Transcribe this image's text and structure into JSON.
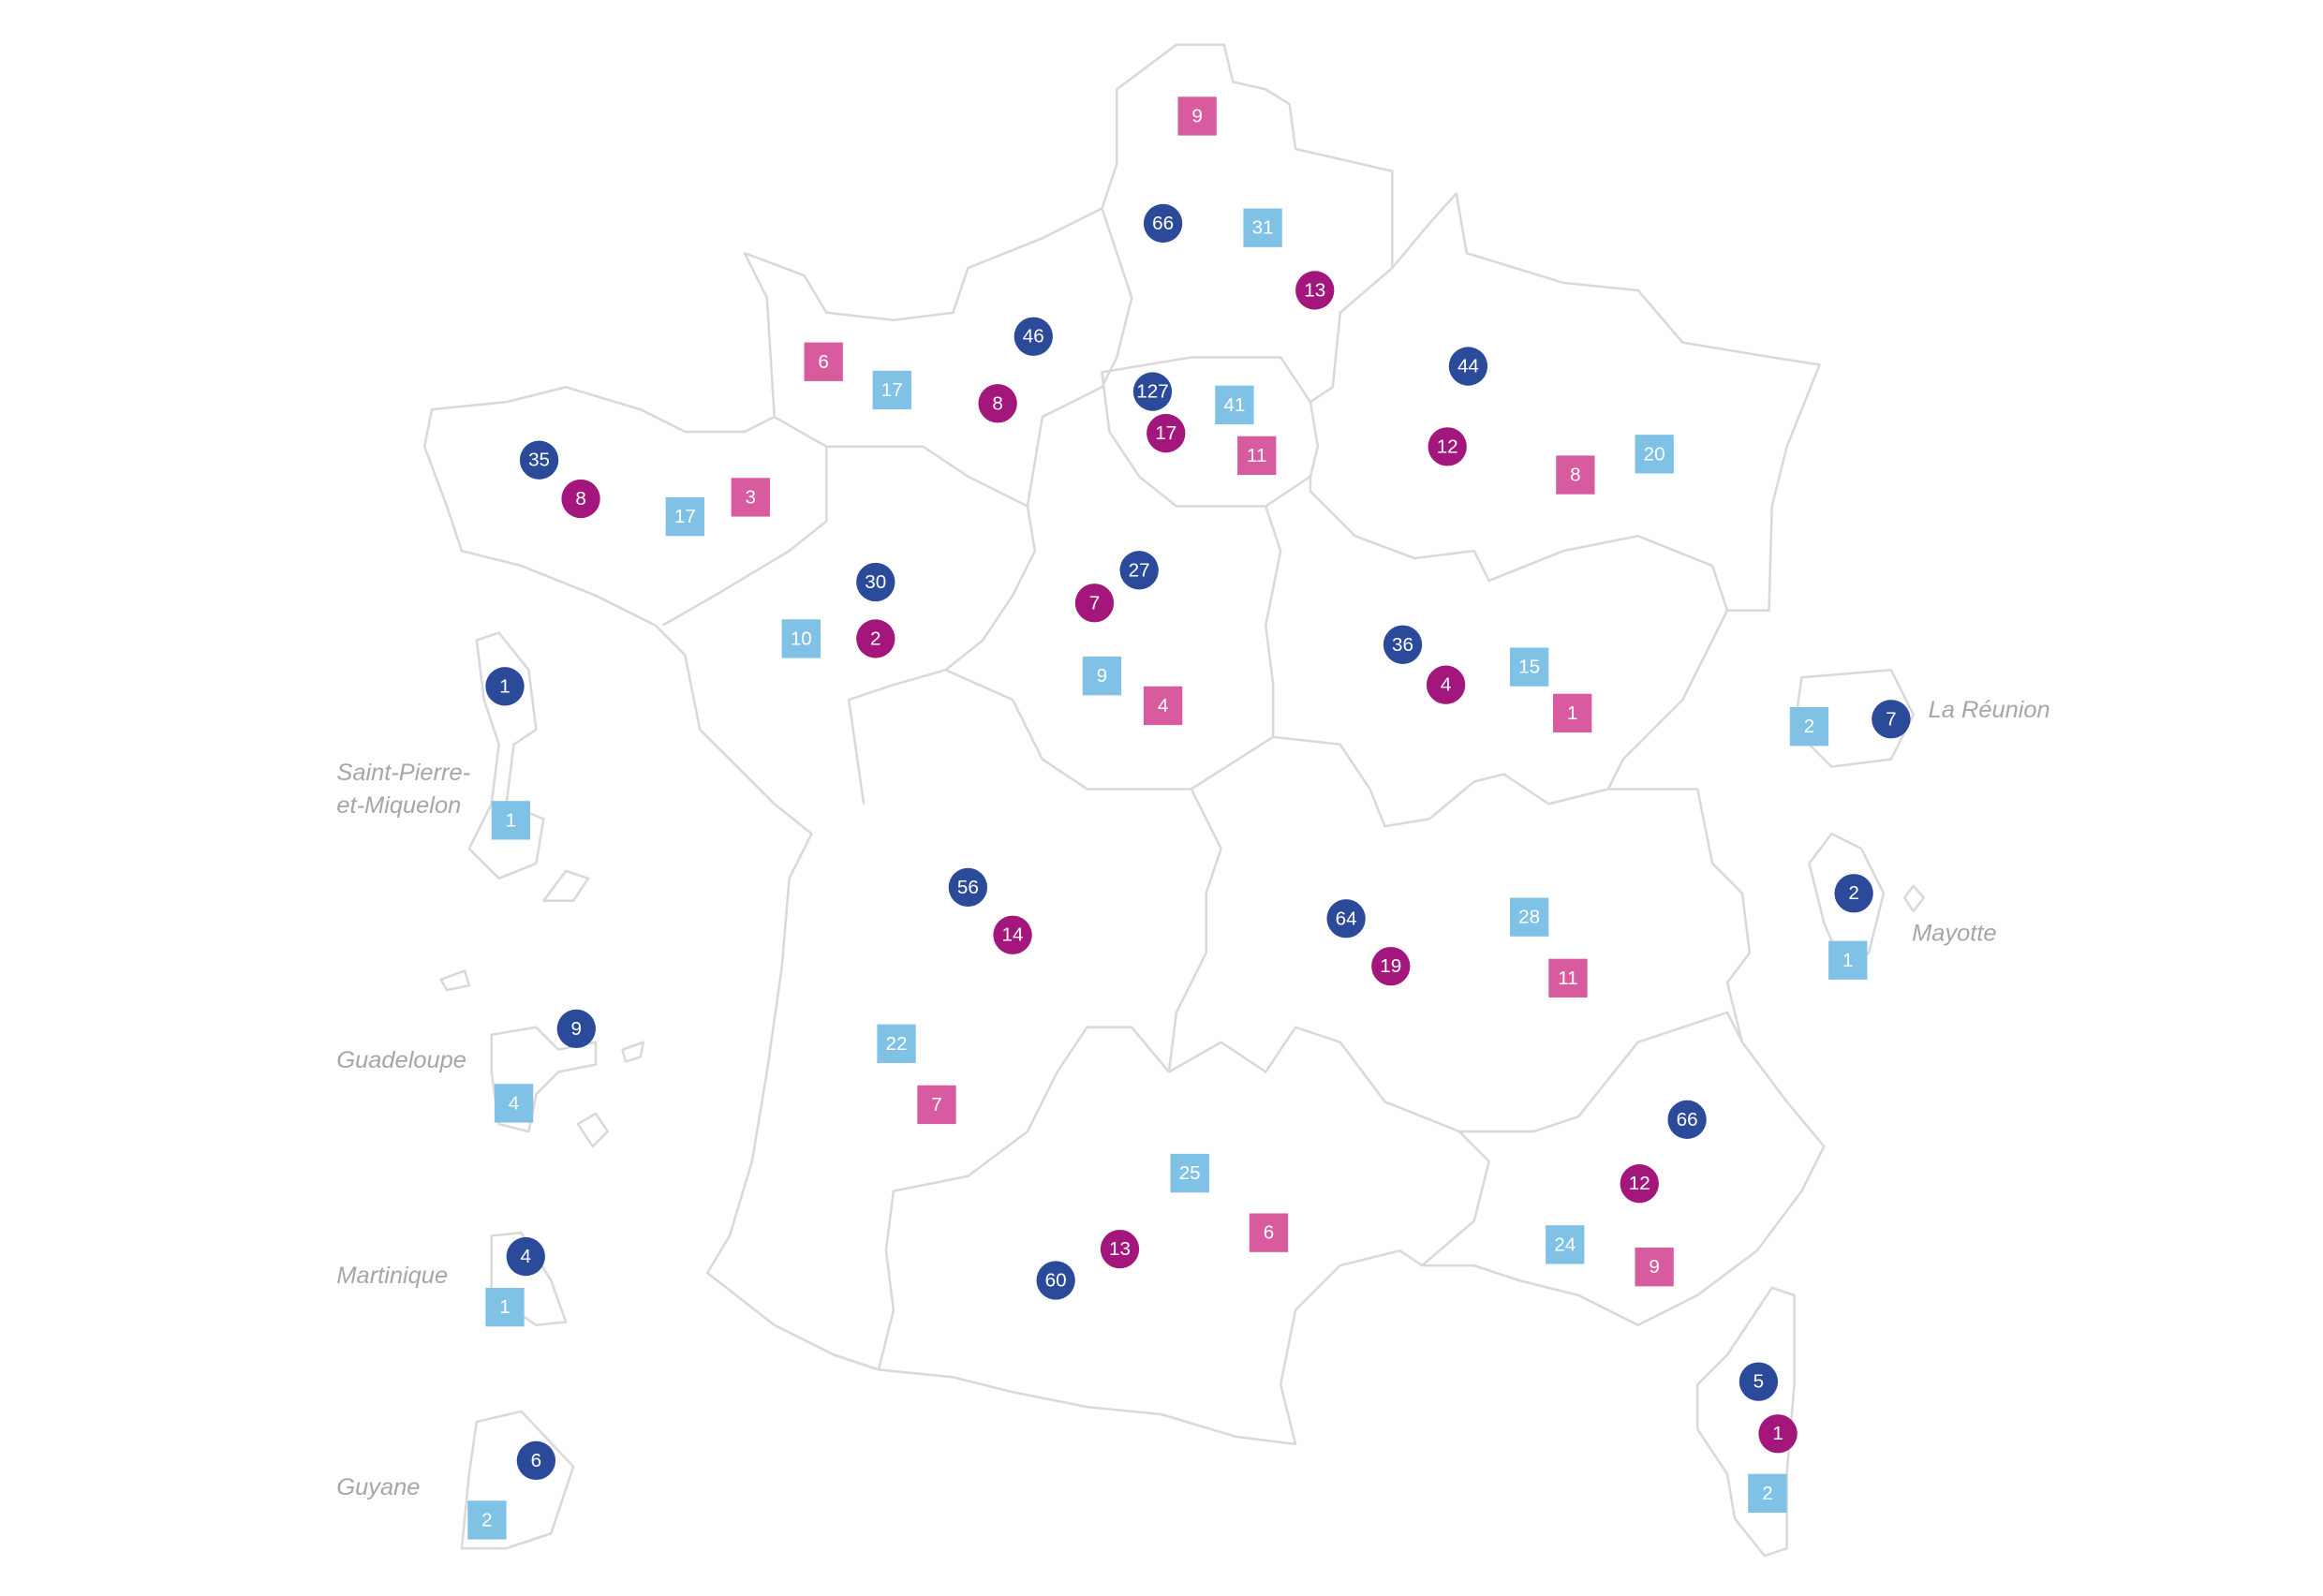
{
  "overseas_labels": [
    [
      "Saint-Pierre-",
      "et-Miquelon"
    ],
    [
      "Guadeloupe"
    ],
    [
      "Martinique"
    ],
    [
      "Guyane"
    ],
    [
      "La Réunion"
    ],
    [
      "Mayotte"
    ]
  ],
  "markers": {
    "navy_circle": [
      66,
      46,
      127,
      35,
      44,
      30,
      27,
      36,
      1,
      7,
      56,
      64,
      2,
      9,
      66,
      4,
      60,
      5,
      6
    ],
    "magenta_circle": [
      13,
      8,
      17,
      8,
      12,
      7,
      2,
      4,
      14,
      19,
      12,
      13,
      1
    ],
    "blue_square": [
      31,
      17,
      41,
      17,
      20,
      10,
      15,
      9,
      2,
      1,
      28,
      1,
      22,
      4,
      25,
      24,
      1,
      2,
      2
    ],
    "pink_square": [
      9,
      6,
      3,
      11,
      8,
      1,
      4,
      11,
      7,
      6,
      9
    ]
  }
}
